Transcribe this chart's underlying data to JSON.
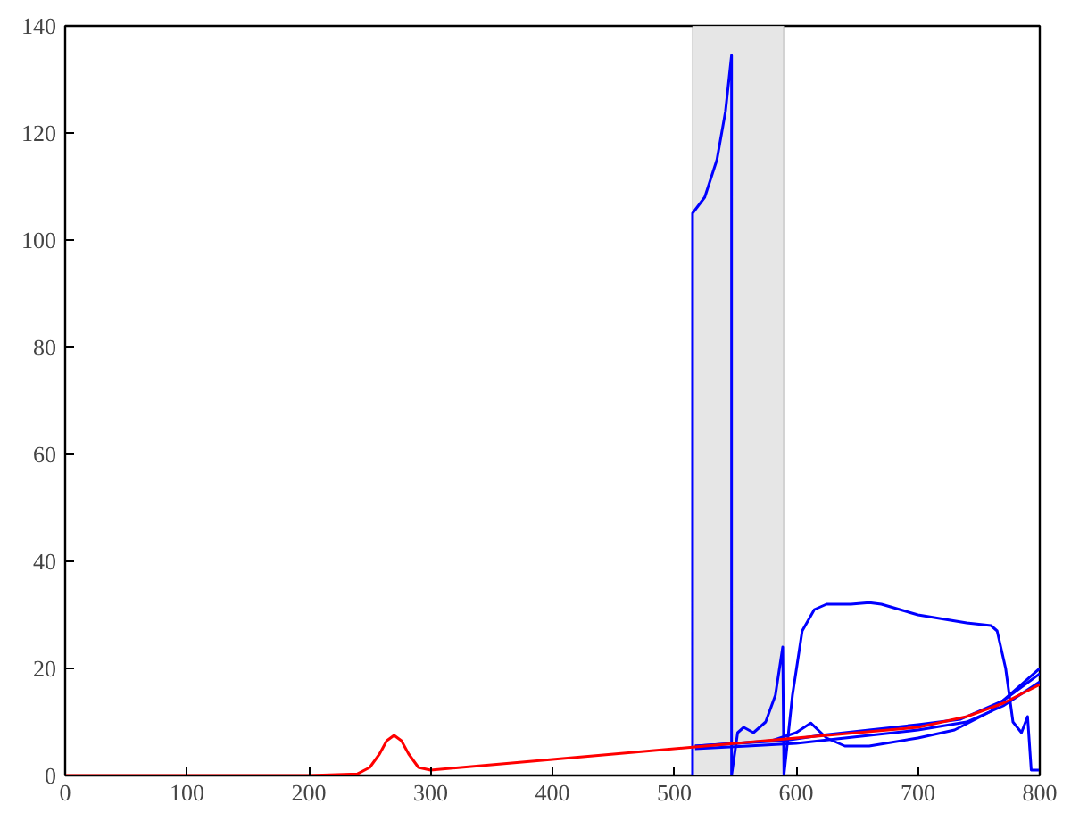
{
  "chart_data": {
    "type": "line",
    "xlim": [
      0,
      800
    ],
    "ylim": [
      0,
      140
    ],
    "xticks": [
      0,
      100,
      200,
      300,
      400,
      500,
      600,
      700,
      800
    ],
    "yticks": [
      0,
      20,
      40,
      60,
      80,
      100,
      120,
      140
    ],
    "grid": false,
    "marker": "none",
    "line_style": "solid",
    "bands": [
      {
        "axis": "x",
        "from": 515,
        "to": 590,
        "color": "#e6e6e6"
      }
    ],
    "series": [
      {
        "color": "#0000ff",
        "x": [
          515,
          515,
          525,
          535,
          542,
          547,
          547,
          552,
          557,
          565,
          575,
          583,
          589,
          590,
          597,
          605,
          615,
          625,
          645,
          660,
          670,
          700,
          740,
          760,
          765,
          772,
          778,
          785,
          790,
          793,
          800
        ],
        "values": [
          0,
          105,
          108,
          115,
          124,
          134.5,
          0,
          8,
          9,
          8,
          10,
          15,
          24,
          0,
          15,
          27,
          31,
          32,
          32,
          32.3,
          32,
          30,
          28.5,
          28,
          27,
          20,
          10,
          8,
          11,
          1,
          1
        ]
      },
      {
        "color": "#0000ff",
        "x": [
          517,
          550,
          580,
          600,
          612,
          625,
          640,
          660,
          700,
          730,
          760,
          800
        ],
        "values": [
          5.5,
          6,
          6.5,
          8,
          9.8,
          7,
          5.5,
          5.5,
          7,
          8.5,
          12,
          20
        ]
      },
      {
        "color": "#0000ff",
        "x": [
          517,
          550,
          590,
          620,
          660,
          700,
          735,
          770,
          800
        ],
        "values": [
          5.5,
          6,
          6.5,
          7.5,
          8.5,
          9.5,
          10.5,
          14,
          19
        ]
      },
      {
        "color": "#0000ff",
        "x": [
          517,
          560,
          600,
          640,
          700,
          740,
          770,
          800
        ],
        "values": [
          5,
          5.5,
          6,
          7,
          8.5,
          10,
          13,
          17.5
        ]
      },
      {
        "color": "#ff0000",
        "x": [
          0,
          200,
          240,
          250,
          258,
          264,
          270,
          276,
          282,
          290,
          300,
          400,
          515,
          600,
          700,
          740,
          770,
          800
        ],
        "values": [
          0,
          0,
          0.3,
          1.5,
          4,
          6.5,
          7.5,
          6.5,
          4,
          1.5,
          1,
          3,
          5.3,
          7,
          9,
          11,
          13.5,
          17
        ]
      }
    ]
  }
}
